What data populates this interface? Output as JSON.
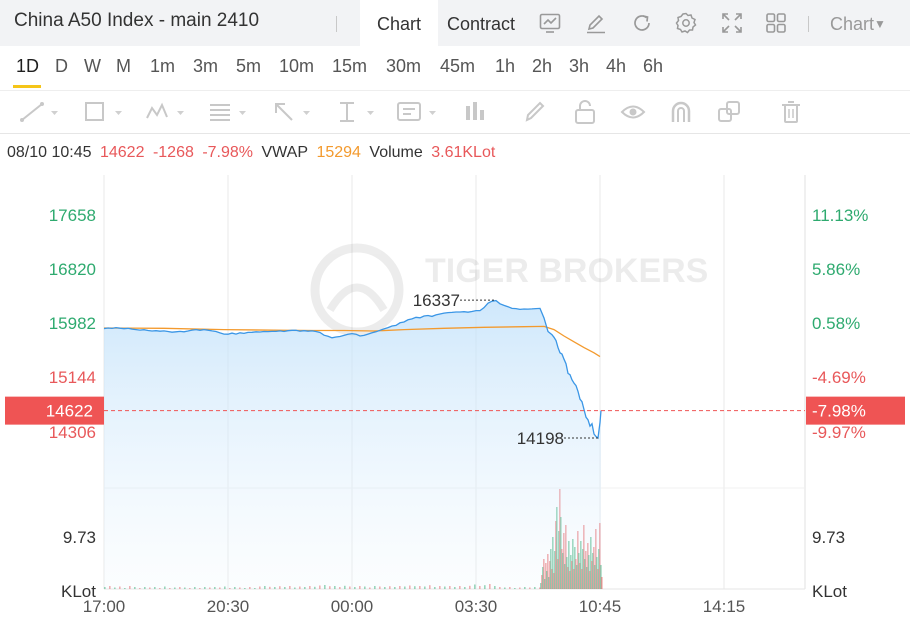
{
  "header": {
    "title": "China A50 Index - main 2410",
    "tabs": [
      {
        "label": "Chart",
        "active": true
      },
      {
        "label": "Contract",
        "active": false
      }
    ],
    "icons": [
      "line-chart-icon",
      "edit-icon",
      "refresh-icon",
      "settings-icon",
      "fullscreen-icon",
      "grid-icon"
    ],
    "chart_menu_label": "Chart"
  },
  "periods": [
    "1D",
    "D",
    "W",
    "M",
    "1m",
    "3m",
    "5m",
    "10m",
    "15m",
    "30m",
    "45m",
    "1h",
    "2h",
    "3h",
    "4h",
    "6h"
  ],
  "active_period": "1D",
  "drawing_tools": [
    "trend-line-icon",
    "rectangle-icon",
    "pattern-icon",
    "fib-icon",
    "arrow-icon",
    "measure-icon",
    "text-note-icon",
    "bar-pattern-icon",
    "brush-icon",
    "lock-icon",
    "eye-icon",
    "magnet-icon",
    "layers-icon",
    "trash-icon"
  ],
  "info": {
    "datetime": "08/10 10:45",
    "price": "14622",
    "change": "-1268",
    "change_pct": "-7.98%",
    "vwap_label": "VWAP",
    "vwap": "15294",
    "volume_label": "Volume",
    "volume": "3.61KLot"
  },
  "colors": {
    "up": "#2eaa6f",
    "down": "#e8585a",
    "price_line": "#3a96e6",
    "vwap_line": "#f39a2e",
    "current_tag": "#ef5454"
  },
  "watermark": "TIGER BROKERS",
  "chart_data": {
    "type": "line",
    "title": "",
    "x_ticks": [
      "17:00",
      "20:30",
      "00:00",
      "03:30",
      "10:45",
      "14:15"
    ],
    "y_left_ticks": [
      {
        "label": "17658",
        "value": 17658,
        "color": "up"
      },
      {
        "label": "16820",
        "value": 16820,
        "color": "up"
      },
      {
        "label": "15982",
        "value": 15982,
        "color": "up"
      },
      {
        "label": "15144",
        "value": 15144,
        "color": "down"
      },
      {
        "label": "14306",
        "value": 14306,
        "color": "down"
      }
    ],
    "y_right_ticks": [
      {
        "label": "11.13%",
        "value": 17658,
        "color": "up"
      },
      {
        "label": "5.86%",
        "value": 16820,
        "color": "up"
      },
      {
        "label": "0.58%",
        "value": 15982,
        "color": "up"
      },
      {
        "label": "-4.69%",
        "value": 15144,
        "color": "down"
      },
      {
        "label": "-9.97%",
        "value": 14306,
        "color": "down"
      }
    ],
    "current_price": {
      "label": "14622",
      "pct": "-7.98%",
      "value": 14622
    },
    "high_marker": {
      "label": "16337",
      "value": 16337
    },
    "low_marker": {
      "label": "14198",
      "value": 14198
    },
    "volume_axis": {
      "label": "9.73",
      "unit": "KLot"
    },
    "series": [
      {
        "name": "price",
        "points": [
          [
            0,
            15895
          ],
          [
            4,
            15904
          ],
          [
            8,
            15898
          ],
          [
            12,
            15910
          ],
          [
            16,
            15902
          ],
          [
            20,
            15893
          ],
          [
            24,
            15900
          ],
          [
            28,
            15888
          ],
          [
            32,
            15880
          ],
          [
            36,
            15872
          ],
          [
            40,
            15878
          ],
          [
            44,
            15865
          ],
          [
            48,
            15858
          ],
          [
            52,
            15862
          ],
          [
            56,
            15855
          ],
          [
            60,
            15860
          ],
          [
            64,
            15850
          ],
          [
            68,
            15840
          ],
          [
            72,
            15845
          ],
          [
            76,
            15852
          ],
          [
            80,
            15846
          ],
          [
            84,
            15858
          ],
          [
            88,
            15872
          ],
          [
            92,
            15880
          ],
          [
            96,
            15868
          ],
          [
            100,
            15880
          ],
          [
            104,
            15870
          ],
          [
            108,
            15860
          ],
          [
            112,
            15850
          ],
          [
            116,
            15828
          ],
          [
            120,
            15810
          ],
          [
            124,
            15808
          ],
          [
            128,
            15825
          ],
          [
            132,
            15810
          ],
          [
            136,
            15830
          ],
          [
            140,
            15820
          ],
          [
            144,
            15836
          ],
          [
            148,
            15838
          ],
          [
            152,
            15845
          ],
          [
            156,
            15842
          ],
          [
            160,
            15850
          ],
          [
            164,
            15848
          ],
          [
            168,
            15852
          ],
          [
            172,
            15852
          ],
          [
            176,
            15860
          ],
          [
            180,
            15850
          ],
          [
            184,
            15862
          ],
          [
            188,
            15868
          ],
          [
            192,
            15868
          ],
          [
            196,
            15855
          ],
          [
            200,
            15862
          ],
          [
            204,
            15854
          ],
          [
            208,
            15860
          ],
          [
            212,
            15850
          ],
          [
            216,
            15835
          ],
          [
            220,
            15792
          ],
          [
            224,
            15775
          ],
          [
            228,
            15752
          ],
          [
            232,
            15765
          ],
          [
            236,
            15772
          ],
          [
            240,
            15790
          ],
          [
            244,
            15808
          ],
          [
            248,
            15818
          ],
          [
            252,
            15808
          ],
          [
            256,
            15780
          ],
          [
            260,
            15790
          ],
          [
            264,
            15810
          ],
          [
            268,
            15830
          ],
          [
            272,
            15845
          ],
          [
            276,
            15868
          ],
          [
            280,
            15890
          ],
          [
            284,
            15910
          ],
          [
            288,
            15936
          ],
          [
            292,
            15945
          ],
          [
            296,
            15985
          ],
          [
            300,
            15998
          ],
          [
            304,
            16032
          ],
          [
            308,
            16045
          ],
          [
            312,
            16070
          ],
          [
            316,
            16062
          ],
          [
            320,
            16090
          ],
          [
            324,
            16098
          ],
          [
            328,
            16085
          ],
          [
            332,
            16108
          ],
          [
            336,
            16122
          ],
          [
            340,
            16136
          ],
          [
            344,
            16143
          ],
          [
            348,
            16147
          ],
          [
            352,
            16152
          ],
          [
            356,
            16152
          ],
          [
            360,
            16157
          ],
          [
            364,
            16150
          ],
          [
            368,
            16160
          ],
          [
            372,
            16174
          ],
          [
            376,
            16175
          ],
          [
            380,
            16220
          ],
          [
            384,
            16290
          ],
          [
            388,
            16320
          ],
          [
            392,
            16330
          ],
          [
            396,
            16280
          ],
          [
            400,
            16255
          ],
          [
            404,
            16235
          ],
          [
            408,
            16208
          ],
          [
            412,
            16205
          ],
          [
            416,
            16193
          ],
          [
            420,
            16200
          ],
          [
            424,
            16198
          ],
          [
            428,
            16201
          ],
          [
            432,
            16205
          ],
          [
            436,
            16208
          ],
          [
            440,
            16060
          ],
          [
            444,
            15850
          ],
          [
            446,
            15825
          ],
          [
            448,
            15800
          ],
          [
            450,
            15760
          ],
          [
            452,
            15710
          ],
          [
            454,
            15600
          ],
          [
            456,
            15520
          ],
          [
            458,
            15500
          ],
          [
            460,
            15420
          ],
          [
            462,
            15350
          ],
          [
            464,
            15200
          ],
          [
            466,
            15180
          ],
          [
            468,
            15100
          ],
          [
            470,
            15050
          ],
          [
            472,
            15010
          ],
          [
            474,
            14920
          ],
          [
            476,
            14800
          ],
          [
            478,
            14760
          ],
          [
            480,
            14640
          ],
          [
            482,
            14520
          ],
          [
            484,
            14480
          ],
          [
            486,
            14380
          ],
          [
            488,
            14420
          ],
          [
            490,
            14260
          ],
          [
            492,
            14220
          ],
          [
            494,
            14198
          ],
          [
            496,
            14440
          ],
          [
            497,
            14622
          ]
        ]
      },
      {
        "name": "VWAP",
        "points": [
          [
            0,
            15904
          ],
          [
            60,
            15900
          ],
          [
            120,
            15880
          ],
          [
            180,
            15868
          ],
          [
            210,
            15865
          ],
          [
            240,
            15865
          ],
          [
            270,
            15858
          ],
          [
            300,
            15880
          ],
          [
            340,
            15900
          ],
          [
            380,
            15915
          ],
          [
            420,
            15925
          ],
          [
            440,
            15930
          ],
          [
            450,
            15880
          ],
          [
            460,
            15780
          ],
          [
            470,
            15690
          ],
          [
            480,
            15600
          ],
          [
            490,
            15520
          ],
          [
            496,
            15460
          ]
        ]
      }
    ],
    "volume_bars": [
      [
        0,
        2
      ],
      [
        5,
        3
      ],
      [
        10,
        1.5
      ],
      [
        15,
        2.5
      ],
      [
        20,
        1
      ],
      [
        25,
        3
      ],
      [
        30,
        2
      ],
      [
        35,
        1
      ],
      [
        40,
        2
      ],
      [
        45,
        1.5
      ],
      [
        50,
        2
      ],
      [
        55,
        1
      ],
      [
        60,
        2.5
      ],
      [
        65,
        1
      ],
      [
        70,
        1.5
      ],
      [
        75,
        2
      ],
      [
        80,
        1.5
      ],
      [
        85,
        1
      ],
      [
        90,
        2
      ],
      [
        95,
        1
      ],
      [
        100,
        2
      ],
      [
        105,
        1.5
      ],
      [
        110,
        2
      ],
      [
        115,
        1.5
      ],
      [
        120,
        2.5
      ],
      [
        125,
        1
      ],
      [
        130,
        2
      ],
      [
        135,
        1.5
      ],
      [
        140,
        1
      ],
      [
        145,
        2
      ],
      [
        150,
        1
      ],
      [
        155,
        2.5
      ],
      [
        160,
        3
      ],
      [
        165,
        2.2
      ],
      [
        170,
        2
      ],
      [
        175,
        2.8
      ],
      [
        180,
        2
      ],
      [
        185,
        3
      ],
      [
        190,
        1.5
      ],
      [
        195,
        2.5
      ],
      [
        200,
        2
      ],
      [
        205,
        3
      ],
      [
        210,
        2.2
      ],
      [
        215,
        3.5
      ],
      [
        220,
        4
      ],
      [
        225,
        2.8
      ],
      [
        230,
        3
      ],
      [
        235,
        2
      ],
      [
        240,
        3.2
      ],
      [
        245,
        2.5
      ],
      [
        250,
        2
      ],
      [
        255,
        3
      ],
      [
        260,
        2.5
      ],
      [
        265,
        1.5
      ],
      [
        270,
        3
      ],
      [
        275,
        2.5
      ],
      [
        280,
        2
      ],
      [
        285,
        2.8
      ],
      [
        290,
        2
      ],
      [
        295,
        3
      ],
      [
        300,
        2.5
      ],
      [
        305,
        3.5
      ],
      [
        310,
        2.8
      ],
      [
        315,
        3
      ],
      [
        320,
        2.5
      ],
      [
        325,
        3.8
      ],
      [
        330,
        2
      ],
      [
        335,
        3
      ],
      [
        340,
        2.5
      ],
      [
        345,
        3
      ],
      [
        350,
        2
      ],
      [
        355,
        3
      ],
      [
        360,
        2
      ],
      [
        365,
        3.2
      ],
      [
        370,
        4.5
      ],
      [
        375,
        3
      ],
      [
        380,
        3.8
      ],
      [
        385,
        5
      ],
      [
        390,
        3
      ],
      [
        395,
        2
      ],
      [
        400,
        1.5
      ],
      [
        405,
        2
      ],
      [
        410,
        1
      ],
      [
        415,
        1.5
      ],
      [
        420,
        2
      ],
      [
        425,
        1.5
      ],
      [
        430,
        2
      ],
      [
        435,
        1.5
      ],
      [
        436,
        6
      ],
      [
        437,
        14
      ],
      [
        438,
        22
      ],
      [
        439,
        30
      ],
      [
        440,
        10
      ],
      [
        441,
        26
      ],
      [
        442,
        18
      ],
      [
        443,
        35
      ],
      [
        444,
        12
      ],
      [
        445,
        28
      ],
      [
        446,
        40
      ],
      [
        447,
        20
      ],
      [
        448,
        52
      ],
      [
        449,
        16
      ],
      [
        450,
        38
      ],
      [
        451,
        68
      ],
      [
        452,
        82
      ],
      [
        453,
        30
      ],
      [
        454,
        58
      ],
      [
        455,
        100
      ],
      [
        456,
        72
      ],
      [
        457,
        40
      ],
      [
        458,
        36
      ],
      [
        459,
        56
      ],
      [
        460,
        25
      ],
      [
        461,
        64
      ],
      [
        462,
        32
      ],
      [
        463,
        22
      ],
      [
        464,
        48
      ],
      [
        465,
        18
      ],
      [
        466,
        34
      ],
      [
        467,
        28
      ],
      [
        468,
        50
      ],
      [
        469,
        20
      ],
      [
        470,
        42
      ],
      [
        471,
        30
      ],
      [
        472,
        24
      ],
      [
        473,
        58
      ],
      [
        474,
        36
      ],
      [
        475,
        26
      ],
      [
        476,
        48
      ],
      [
        477,
        20
      ],
      [
        478,
        40
      ],
      [
        479,
        64
      ],
      [
        480,
        30
      ],
      [
        481,
        38
      ],
      [
        482,
        22
      ],
      [
        483,
        46
      ],
      [
        484,
        34
      ],
      [
        485,
        18
      ],
      [
        486,
        52
      ],
      [
        487,
        28
      ],
      [
        488,
        36
      ],
      [
        489,
        42
      ],
      [
        490,
        24
      ],
      [
        491,
        60
      ],
      [
        492,
        32
      ],
      [
        493,
        20
      ],
      [
        494,
        40
      ],
      [
        495,
        66
      ],
      [
        496,
        24
      ],
      [
        497,
        12
      ]
    ]
  }
}
